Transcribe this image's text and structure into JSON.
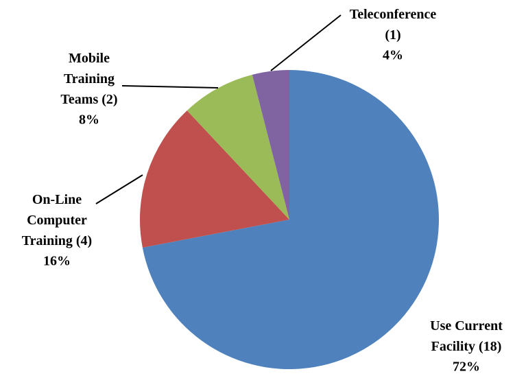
{
  "chart_data": {
    "type": "pie",
    "categories": [
      "Use Current Facility (18)",
      "On-Line Computer Training (4)",
      "Mobile Training Teams (2)",
      "Teleconference (1)"
    ],
    "values": [
      72,
      16,
      8,
      4
    ],
    "value_labels": [
      "72%",
      "16%",
      "8%",
      "4%"
    ],
    "colors": [
      "#4f81bd",
      "#c0504d",
      "#9bbb59",
      "#8064a2"
    ]
  }
}
